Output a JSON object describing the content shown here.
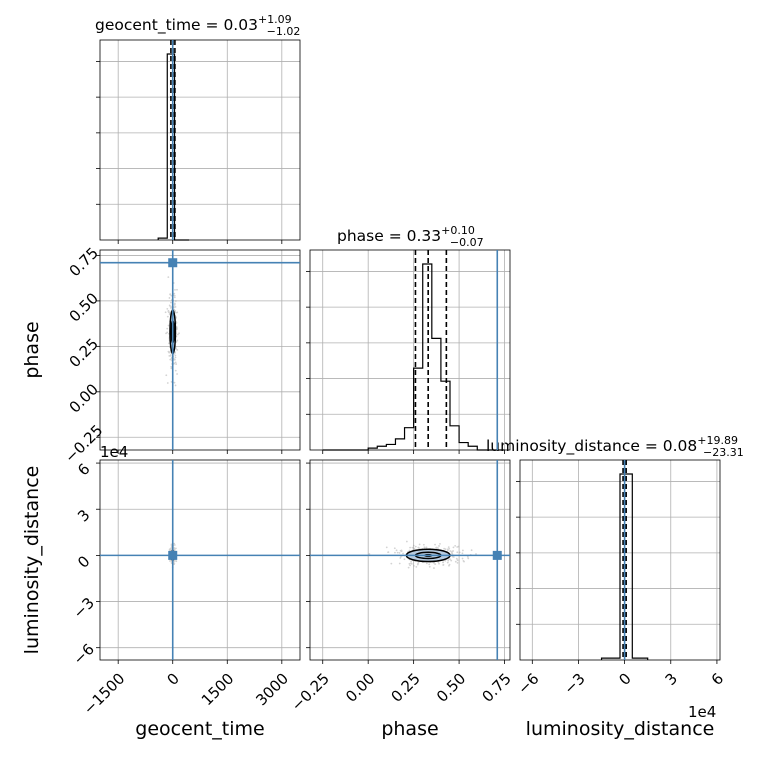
{
  "chart_data": {
    "type": "corner",
    "parameters": [
      "geocent_time",
      "phase",
      "luminosity_distance"
    ],
    "truths": {
      "geocent_time": 0,
      "phase": 0.71,
      "luminosity_distance": 0
    },
    "diagonal_titles": [
      {
        "name": "geocent_time",
        "median": "0.03",
        "plus": "+1.09",
        "minus": "−1.02"
      },
      {
        "name": "phase",
        "median": "0.33",
        "plus": "+0.10",
        "minus": "−0.07"
      },
      {
        "name": "luminosity_distance",
        "median": "0.08",
        "plus": "+19.89",
        "minus": "−23.31"
      }
    ],
    "axes": {
      "geocent_time": {
        "range": [
          -2000,
          3500
        ],
        "ticks": [
          -1500,
          0,
          1500,
          3000
        ],
        "tick_labels": [
          "−1500",
          "0",
          "1500",
          "3000"
        ]
      },
      "phase": {
        "range": [
          -0.32,
          0.78
        ],
        "ticks": [
          -0.25,
          0.0,
          0.25,
          0.5,
          0.75
        ],
        "tick_labels": [
          "−0.25",
          "0.00",
          "0.25",
          "0.50",
          "0.75"
        ]
      },
      "luminosity_distance": {
        "range": [
          -6.8,
          6.2
        ],
        "ticks": [
          -6,
          -3,
          0,
          3,
          6
        ],
        "tick_labels": [
          "−6",
          "−3",
          "0",
          "3",
          "6"
        ],
        "offset_label": "1e4"
      }
    },
    "histograms": {
      "geocent_time": {
        "edges": [
          -400,
          -150,
          50,
          250,
          450
        ],
        "values": [
          0.01,
          1.0,
          0.0,
          0.0
        ]
      },
      "phase": {
        "edges": [
          -0.25,
          -0.2,
          -0.15,
          -0.1,
          -0.05,
          0.0,
          0.05,
          0.1,
          0.15,
          0.2,
          0.25,
          0.3,
          0.35,
          0.4,
          0.45,
          0.5,
          0.55,
          0.6,
          0.65,
          0.7,
          0.75
        ],
        "values": [
          0.0,
          0.0,
          0.0,
          0.0,
          0.0,
          0.01,
          0.02,
          0.03,
          0.06,
          0.12,
          0.44,
          1.0,
          0.6,
          0.37,
          0.13,
          0.04,
          0.02,
          0.0,
          0.0,
          0.0
        ]
      },
      "luminosity_distance": {
        "edges": [
          -1.5,
          -0.3,
          0.5,
          1.5
        ],
        "values": [
          0.01,
          1.0,
          0.01
        ]
      }
    },
    "quantiles": {
      "geocent_time": [
        -50,
        10,
        60
      ],
      "phase": [
        0.26,
        0.33,
        0.43
      ],
      "luminosity_distance": [
        -0.1,
        0.0,
        0.1
      ]
    },
    "contours": {
      "phase_vs_geocent_time": {
        "center": [
          0,
          0.33
        ],
        "inner_radius": [
          40,
          0.06
        ],
        "outer_radius": [
          75,
          0.12
        ]
      },
      "luminosity_distance_vs_geocent_time": {
        "center": [
          0,
          0.0
        ],
        "inner_radius": [
          30,
          0.15
        ],
        "outer_radius": [
          50,
          0.3
        ]
      },
      "luminosity_distance_vs_phase": {
        "center": [
          0.33,
          0.0
        ],
        "inner_radius": [
          0.07,
          0.2
        ],
        "outer_radius": [
          0.12,
          0.4
        ]
      }
    },
    "grid": true
  }
}
